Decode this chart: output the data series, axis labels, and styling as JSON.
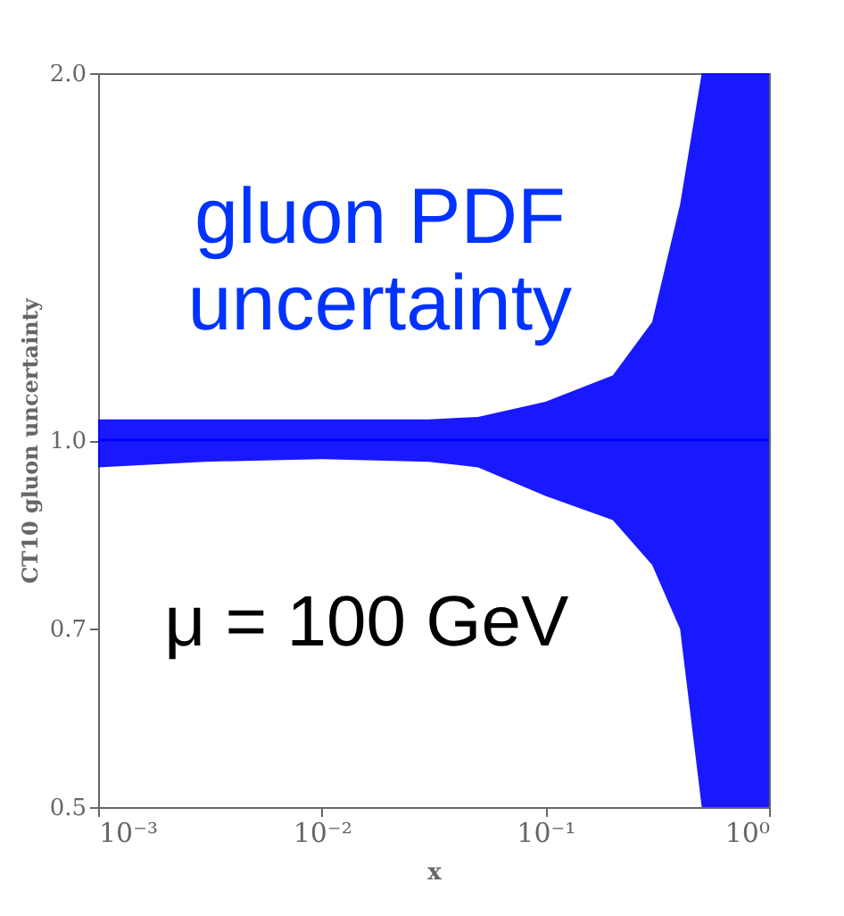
{
  "chart_data": {
    "type": "line",
    "xlabel": "x",
    "ylabel": "CT10 gluon uncertainty",
    "log": "xy",
    "grid": false,
    "xlim": [
      0.001,
      1
    ],
    "ylim": [
      0.5,
      2.0
    ],
    "xticks": [
      {
        "value": 0.001,
        "label": "10⁻³"
      },
      {
        "value": 0.01,
        "label": "10⁻²"
      },
      {
        "value": 0.1,
        "label": "10⁻¹"
      },
      {
        "value": 1,
        "label": "10⁰"
      }
    ],
    "yticks": [
      0.5,
      0.7,
      {
        "value": 1,
        "label": "1.0"
      },
      {
        "value": 2,
        "label": "2.0"
      }
    ],
    "annotations": [
      "gluon PDF uncertainty",
      "μ = 100 GeV"
    ],
    "series": [
      {
        "color": "#0000ff",
        "x": [
          0.001,
          0.003,
          0.01,
          0.03,
          0.05,
          0.1,
          0.2,
          0.3,
          0.4,
          0.5,
          1
        ],
        "lower": [
          0.95,
          0.96,
          0.965,
          0.96,
          0.95,
          0.9,
          0.86,
          0.79,
          0.7,
          0.5,
          0.5
        ],
        "values": [
          1,
          1,
          1,
          1,
          1,
          1,
          1,
          1,
          1,
          1,
          1
        ],
        "upper": [
          1.04,
          1.04,
          1.04,
          1.04,
          1.045,
          1.075,
          1.13,
          1.25,
          1.56,
          2.0,
          2.0
        ]
      }
    ]
  }
}
